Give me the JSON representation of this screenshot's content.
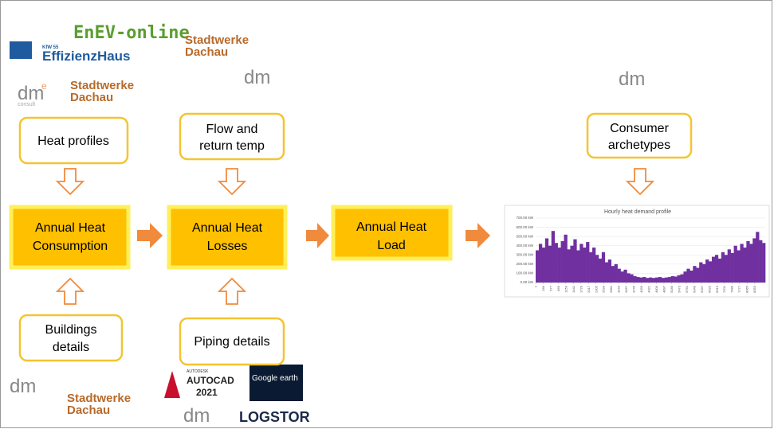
{
  "logos": {
    "enev": "EnEV-online",
    "kfw_small": "KfW 55",
    "kfw": "EffizienzHaus",
    "stadtwerke_1": "Stadtwerke Dachau",
    "dm_1": "dm",
    "dm_e": "e",
    "dm_consult": "consult",
    "stadtwerke_2": "Stadtwerke Dachau",
    "dm_2": "dm",
    "dm_3": "dm",
    "dm_4": "dm",
    "stadtwerke_3": "Stadtwerke Dachau",
    "autodesk": "AUTODESK",
    "autocad": "AUTOCAD",
    "autocad_year": "2021",
    "google_earth": "Google earth",
    "dm_5": "dm",
    "logstor": "LOGSTOR"
  },
  "nodes": [
    {
      "label": "Heat profiles"
    },
    {
      "label": "Flow and return temp"
    },
    {
      "label": "Consumer archetypes"
    },
    {
      "label": "Annual Heat Consumption"
    },
    {
      "label": "Annual Heat Losses"
    },
    {
      "label": "Annual Heat Load"
    },
    {
      "label": "Buildings details"
    },
    {
      "label": "Piping details"
    }
  ],
  "chart_data": {
    "type": "bar",
    "title": "Hourly  heat demand profile",
    "ylim": [
      0,
      700
    ],
    "yticks": [
      {
        "value": 0,
        "label": "0.00 kW"
      },
      {
        "value": 100,
        "label": "100.00 kW"
      },
      {
        "value": 200,
        "label": "200.00 kW"
      },
      {
        "value": 300,
        "label": "300.00 kW"
      },
      {
        "value": 400,
        "label": "400.00 kW"
      },
      {
        "value": 500,
        "label": "500.00 kW"
      },
      {
        "value": 600,
        "label": "600.00 kW"
      },
      {
        "value": 700,
        "label": "700.00 kW"
      }
    ],
    "xticks": [
      1,
      289,
      577,
      865,
      1153,
      1441,
      1729,
      2017,
      2305,
      2593,
      2881,
      3169,
      3457,
      3745,
      4033,
      4321,
      4609,
      4897,
      5185,
      5473,
      5761,
      6049,
      6337,
      6625,
      6913,
      7201,
      7489,
      7777,
      8065,
      8353
    ],
    "xlim": [
      1,
      8760
    ],
    "color": "#7030a0",
    "x": [
      1,
      121,
      241,
      361,
      481,
      601,
      721,
      841,
      961,
      1081,
      1201,
      1321,
      1441,
      1561,
      1681,
      1801,
      1921,
      2041,
      2161,
      2281,
      2401,
      2521,
      2641,
      2761,
      2881,
      3001,
      3121,
      3241,
      3361,
      3481,
      3601,
      3721,
      3841,
      3961,
      4081,
      4201,
      4321,
      4441,
      4561,
      4681,
      4801,
      4921,
      5041,
      5161,
      5281,
      5401,
      5521,
      5641,
      5761,
      5881,
      6001,
      6121,
      6241,
      6361,
      6481,
      6601,
      6721,
      6841,
      6961,
      7081,
      7201,
      7321,
      7441,
      7561,
      7681,
      7801,
      7921,
      8041,
      8161,
      8281,
      8401,
      8521,
      8641
    ],
    "values": [
      350,
      420,
      380,
      480,
      400,
      560,
      430,
      380,
      450,
      520,
      360,
      400,
      470,
      350,
      420,
      380,
      440,
      330,
      380,
      300,
      260,
      330,
      220,
      250,
      180,
      200,
      150,
      120,
      140,
      100,
      90,
      70,
      60,
      55,
      60,
      50,
      55,
      50,
      55,
      60,
      50,
      55,
      60,
      70,
      65,
      80,
      90,
      120,
      150,
      130,
      180,
      160,
      220,
      200,
      250,
      230,
      280,
      300,
      260,
      330,
      300,
      360,
      320,
      400,
      350,
      420,
      380,
      450,
      420,
      480,
      550,
      460,
      430
    ]
  }
}
